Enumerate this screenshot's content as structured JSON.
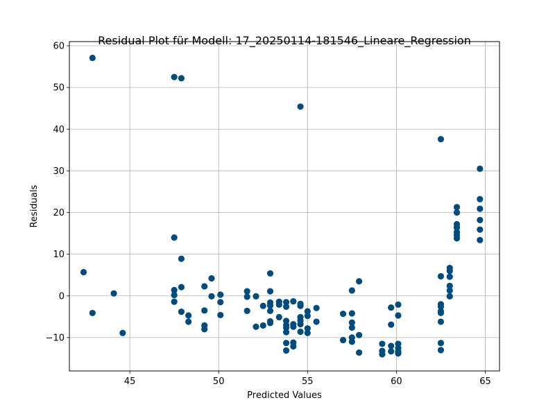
{
  "chart_data": {
    "type": "scatter",
    "title": "Residual Plot für Modell: 17_20250114-181546_Lineare_Regression",
    "xlabel": "Predicted Values",
    "ylabel": "Residuals",
    "xlim": [
      41.6,
      65.8
    ],
    "ylim": [
      -18,
      61
    ],
    "xticks": [
      45,
      50,
      55,
      60,
      65
    ],
    "yticks": [
      -10,
      0,
      10,
      20,
      30,
      40,
      50,
      60
    ],
    "grid": true,
    "marker_color": "#004c7f",
    "points": [
      [
        42.4,
        5.7
      ],
      [
        42.9,
        57.1
      ],
      [
        42.9,
        -4.1
      ],
      [
        44.1,
        0.6
      ],
      [
        44.6,
        -8.9
      ],
      [
        47.5,
        52.5
      ],
      [
        47.5,
        14.0
      ],
      [
        47.5,
        1.4
      ],
      [
        47.5,
        0.2
      ],
      [
        47.5,
        -1.4
      ],
      [
        47.9,
        52.2
      ],
      [
        47.9,
        8.9
      ],
      [
        47.9,
        2.1
      ],
      [
        47.9,
        -3.8
      ],
      [
        48.3,
        -4.7
      ],
      [
        48.3,
        -6.2
      ],
      [
        49.2,
        2.3
      ],
      [
        49.2,
        -3.5
      ],
      [
        49.2,
        -7.1
      ],
      [
        49.2,
        -8.0
      ],
      [
        49.6,
        4.2
      ],
      [
        49.6,
        -0.1
      ],
      [
        50.1,
        0.3
      ],
      [
        50.1,
        -1.5
      ],
      [
        50.1,
        -4.6
      ],
      [
        51.6,
        1.1
      ],
      [
        51.6,
        -0.2
      ],
      [
        51.6,
        -3.6
      ],
      [
        52.1,
        -0.1
      ],
      [
        52.1,
        -7.4
      ],
      [
        52.5,
        -2.4
      ],
      [
        52.5,
        -7.1
      ],
      [
        52.9,
        5.4
      ],
      [
        52.9,
        1.1
      ],
      [
        52.9,
        -1.6
      ],
      [
        52.9,
        -2.3
      ],
      [
        52.9,
        -3.6
      ],
      [
        52.9,
        -6.1
      ],
      [
        52.9,
        -6.5
      ],
      [
        53.4,
        -1.4
      ],
      [
        53.4,
        -2.1
      ],
      [
        53.4,
        -5.1
      ],
      [
        53.8,
        -1.5
      ],
      [
        53.8,
        -2.6
      ],
      [
        53.8,
        -6.0
      ],
      [
        53.8,
        -7.0
      ],
      [
        53.8,
        -7.6
      ],
      [
        53.8,
        -8.7
      ],
      [
        53.8,
        -11.3
      ],
      [
        53.8,
        -13.1
      ],
      [
        54.2,
        -1.3
      ],
      [
        54.2,
        -6.8
      ],
      [
        54.2,
        -7.4
      ],
      [
        54.2,
        -11.2
      ],
      [
        54.2,
        -12.1
      ],
      [
        54.6,
        45.4
      ],
      [
        54.6,
        -1.9
      ],
      [
        54.6,
        -2.4
      ],
      [
        54.6,
        -5.1
      ],
      [
        54.6,
        -5.9
      ],
      [
        54.6,
        -6.8
      ],
      [
        54.6,
        -8.6
      ],
      [
        55.0,
        -3.7
      ],
      [
        55.0,
        -4.8
      ],
      [
        55.0,
        -7.8
      ],
      [
        55.0,
        -8.9
      ],
      [
        55.5,
        -2.9
      ],
      [
        55.5,
        -6.2
      ],
      [
        57.0,
        -4.3
      ],
      [
        57.0,
        -10.6
      ],
      [
        57.5,
        1.3
      ],
      [
        57.5,
        -4.2
      ],
      [
        57.5,
        -6.4
      ],
      [
        57.5,
        -7.6
      ],
      [
        57.5,
        -10.0
      ],
      [
        57.5,
        -11.0
      ],
      [
        57.9,
        3.5
      ],
      [
        57.9,
        -9.4
      ],
      [
        57.9,
        -13.6
      ],
      [
        59.2,
        -11.5
      ],
      [
        59.2,
        -13.2
      ],
      [
        59.2,
        -14.0
      ],
      [
        59.7,
        -2.8
      ],
      [
        59.7,
        -6.9
      ],
      [
        59.7,
        -12.0
      ],
      [
        59.7,
        -13.3
      ],
      [
        60.1,
        -2.1
      ],
      [
        60.1,
        -4.7
      ],
      [
        60.1,
        -11.5
      ],
      [
        60.1,
        -12.5
      ],
      [
        60.1,
        -13.3
      ],
      [
        60.1,
        -13.8
      ],
      [
        62.5,
        37.6
      ],
      [
        62.5,
        4.7
      ],
      [
        62.5,
        -2.0
      ],
      [
        62.5,
        -2.6
      ],
      [
        62.5,
        -3.7
      ],
      [
        62.5,
        -4.1
      ],
      [
        62.5,
        -6.2
      ],
      [
        62.5,
        -11.3
      ],
      [
        62.5,
        -13.0
      ],
      [
        63.0,
        6.7
      ],
      [
        63.0,
        6.0
      ],
      [
        63.0,
        4.6
      ],
      [
        63.0,
        2.4
      ],
      [
        63.0,
        1.3
      ],
      [
        63.0,
        -0.1
      ],
      [
        63.4,
        21.3
      ],
      [
        63.4,
        20.0
      ],
      [
        63.4,
        17.2
      ],
      [
        63.4,
        16.4
      ],
      [
        63.4,
        15.3
      ],
      [
        63.4,
        14.6
      ],
      [
        63.4,
        13.8
      ],
      [
        64.7,
        30.5
      ],
      [
        64.7,
        23.2
      ],
      [
        64.7,
        20.9
      ],
      [
        64.7,
        18.2
      ],
      [
        64.7,
        15.9
      ],
      [
        64.7,
        13.4
      ]
    ]
  }
}
